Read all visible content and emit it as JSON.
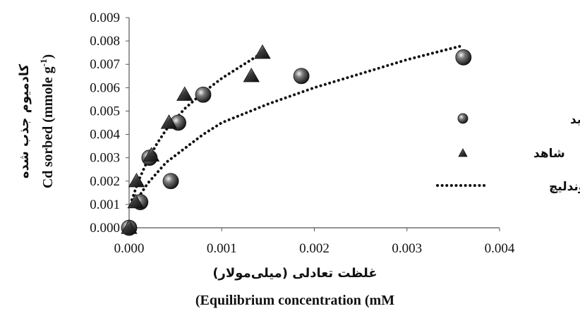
{
  "chart_data": {
    "type": "scatter",
    "xlabel_fa": "غلظت تعادلی (میلی‌مولار)",
    "xlabel_en": "(Equilibrium  concentration (mM",
    "ylabel_fa": "کادمیوم جذب شده",
    "ylabel_en": "Cd sorbed (mmole g-1)",
    "xlim": [
      0,
      0.004
    ],
    "ylim": [
      0,
      0.009
    ],
    "x_ticks": [
      "0.000",
      "0.001",
      "0.002",
      "0.003",
      "0.004"
    ],
    "y_ticks": [
      "0.000",
      "0.001",
      "0.002",
      "0.003",
      "0.004",
      "0.005",
      "0.006",
      "0.007",
      "0.008",
      "0.009"
    ],
    "grid": false,
    "legend_position": "right",
    "series": [
      {
        "name": "اگزالیک اسید",
        "marker": "circle",
        "points": [
          [
            0.0,
            0.0
          ],
          [
            0.00012,
            0.0011
          ],
          [
            0.00022,
            0.003
          ],
          [
            0.00045,
            0.002
          ],
          [
            0.00053,
            0.0045
          ],
          [
            0.0008,
            0.0057
          ],
          [
            0.00186,
            0.0065
          ],
          [
            0.00361,
            0.0073
          ]
        ]
      },
      {
        "name": "شاهد",
        "marker": "triangle",
        "points": [
          [
            0.0,
            0.0
          ],
          [
            7e-05,
            0.0011
          ],
          [
            8e-05,
            0.002
          ],
          [
            0.00024,
            0.0031
          ],
          [
            0.00043,
            0.0045
          ],
          [
            0.0006,
            0.0057
          ],
          [
            0.00132,
            0.0065
          ],
          [
            0.00144,
            0.0075
          ]
        ]
      },
      {
        "name": "فروندلیچ",
        "type": "line",
        "style": "dotted",
        "curves": [
          {
            "x": [
              3e-05,
              0.0001,
              0.0002,
              0.0003,
              0.0004,
              0.0006,
              0.0008,
              0.001,
              0.0012,
              0.00144
            ],
            "y": [
              0.0012,
              0.002,
              0.0029,
              0.0036,
              0.0042,
              0.0051,
              0.0058,
              0.0064,
              0.0069,
              0.0075
            ]
          },
          {
            "x": [
              0.0001,
              0.0002,
              0.0004,
              0.0006,
              0.0008,
              0.001,
              0.0015,
              0.002,
              0.0025,
              0.003,
              0.0035,
              0.0036
            ],
            "y": [
              0.0013,
              0.0019,
              0.0028,
              0.0034,
              0.004,
              0.0045,
              0.0053,
              0.006,
              0.0066,
              0.0072,
              0.0077,
              0.0078
            ]
          }
        ]
      }
    ]
  }
}
